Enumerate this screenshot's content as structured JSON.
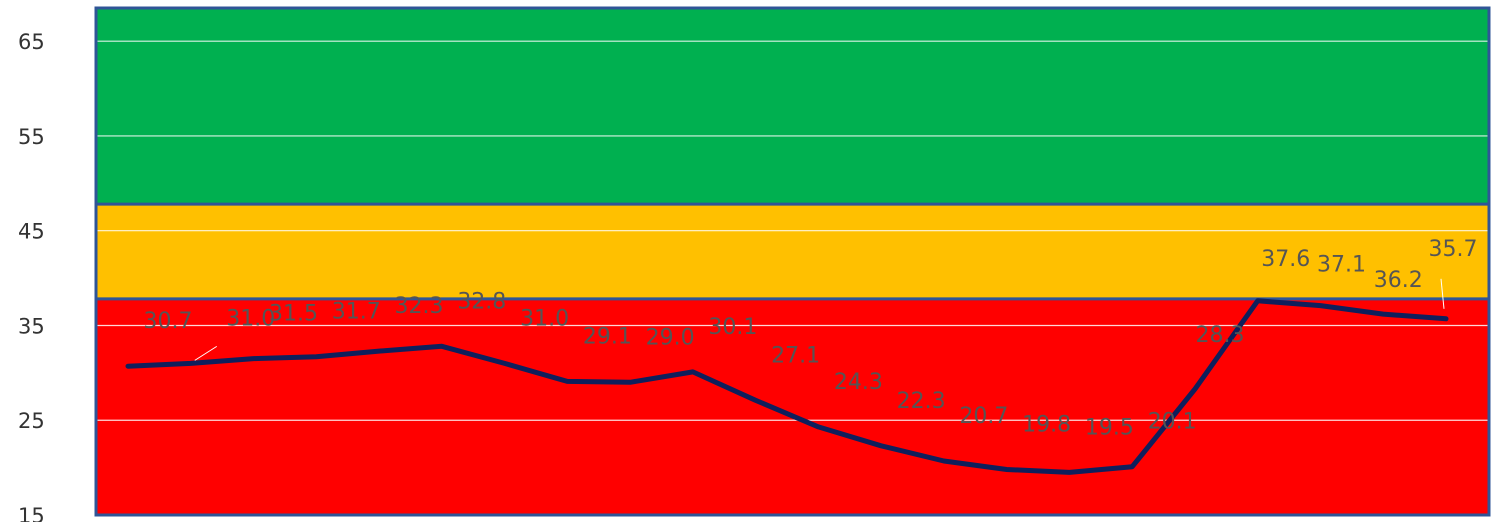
{
  "chart_data": {
    "type": "line",
    "title": "",
    "xlabel": "",
    "ylabel": "",
    "ylim": [
      15,
      68.5
    ],
    "y_ticks": [
      15,
      25,
      35,
      45,
      55,
      65
    ],
    "grid": true,
    "legend": "none",
    "bands": [
      {
        "from": 15,
        "to": 37.8,
        "color": "#ff0000"
      },
      {
        "from": 37.8,
        "to": 47.8,
        "color": "#ffc000"
      },
      {
        "from": 47.8,
        "to": 68.5,
        "color": "#00b050"
      }
    ],
    "band_border_color": "#2f5597",
    "line_color": "#0f1f5c",
    "series": [
      {
        "values": [
          30.7,
          31.0,
          31.5,
          31.7,
          32.3,
          32.8,
          31.0,
          29.1,
          29.0,
          30.1,
          27.1,
          24.3,
          22.3,
          20.7,
          19.8,
          19.5,
          20.1,
          28.3,
          37.6,
          37.1,
          36.2,
          35.7
        ],
        "labels": [
          "30.7",
          "31.0",
          "31.5",
          "31.7",
          "32.3",
          "32.8",
          "31.0",
          "29.1",
          "29.0",
          "30.1",
          "27.1",
          "24.3",
          "22.3",
          "20.7",
          "19.8",
          "19.5",
          "20.1",
          "28.3",
          "37.6",
          "37.1",
          "36.2",
          "35.7"
        ]
      }
    ]
  }
}
